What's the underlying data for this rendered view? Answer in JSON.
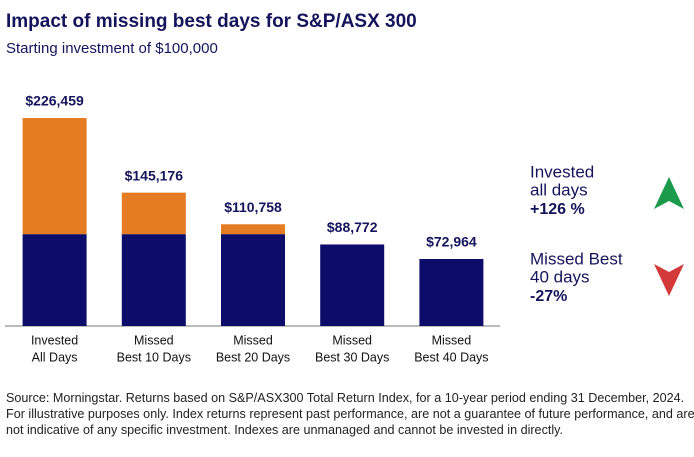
{
  "chart_data": {
    "type": "bar",
    "title": "Impact of missing best days for S&P/ASX 300",
    "subtitle": "Starting investment of $100,000",
    "categories": [
      [
        "Invested",
        "All Days"
      ],
      [
        "Missed",
        "Best 10 Days"
      ],
      [
        "Missed",
        "Best 20 Days"
      ],
      [
        "Missed",
        "Best 30 Days"
      ],
      [
        "Missed",
        "Best 40 Days"
      ]
    ],
    "series": [
      {
        "color": "#0c0c6a",
        "values": [
          100000,
          100000,
          100000,
          88772,
          72964
        ]
      },
      {
        "color": "#e57c22",
        "values": [
          126459,
          45176,
          10758,
          null,
          null
        ]
      }
    ],
    "totals": {
      "values": [
        226459,
        145176,
        110758,
        88772,
        72964
      ],
      "value_labels": [
        "$226,459",
        "$145,176",
        "$110,758",
        "$88,772",
        "$72,964"
      ]
    },
    "annotations": [
      {
        "lines": [
          "Invested",
          "all days"
        ],
        "change": "+126 %",
        "arrow_color": "#1a9a4a"
      },
      {
        "lines": [
          "Missed Best",
          "40 days"
        ],
        "change": "-27%",
        "arrow_color": "#d4393a"
      }
    ],
    "source": "Source: Morningstar. Returns based on S&P/ASX300 Total Return Index, for a 10-year period ending 31 December, 2024. For illustrative purposes only. Index returns represent past performance, are not a guarantee of future performance, and are not indicative of any specific investment. Indexes are unmanaged and cannot be invested in directly."
  }
}
